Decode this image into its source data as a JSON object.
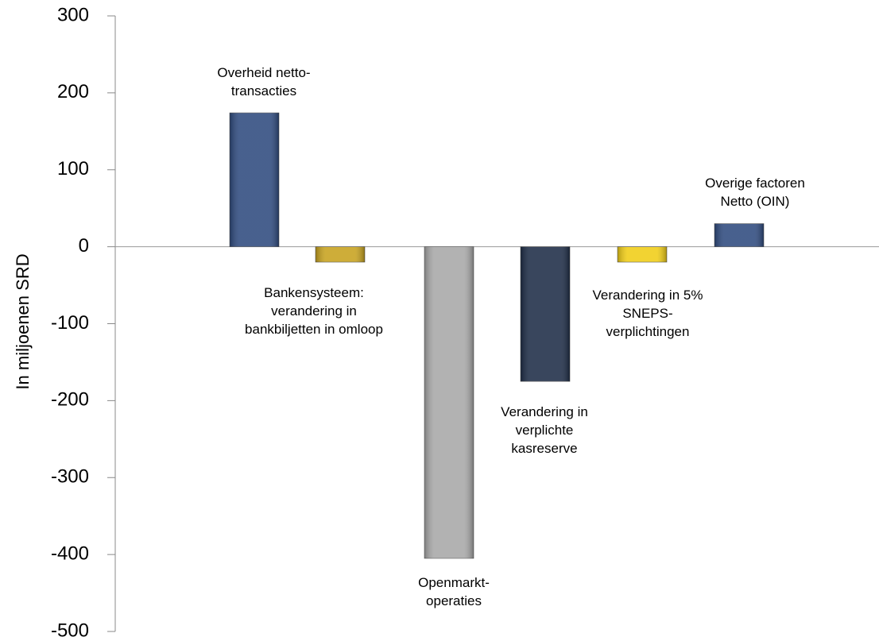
{
  "chart_data": {
    "type": "bar",
    "y_label": "In miljoenen SRD",
    "categories": [
      [
        "Overheid netto-",
        "transacties"
      ],
      [
        "Bankensysteem:",
        "verandering in",
        "bankbiljetten in omloop"
      ],
      [
        "Openmarkt-",
        "operaties"
      ],
      [
        "Verandering in",
        "verplichte",
        "kasreserve"
      ],
      [
        "Verandering in 5%",
        "SNEPS-",
        "verplichtingen"
      ],
      [
        "Overige factoren",
        "Netto (OIN)"
      ]
    ],
    "values": [
      174,
      -20,
      -405,
      -175,
      -20,
      30
    ],
    "colors": [
      "#2f4b7f",
      "#c7a21e",
      "#a8a8a8",
      "#1e2d47",
      "#f0cd16",
      "#2f4b7f"
    ],
    "ylim": [
      -500,
      300
    ],
    "yticks": [
      -500,
      -400,
      -300,
      -200,
      -100,
      0,
      100,
      200,
      300
    ]
  }
}
